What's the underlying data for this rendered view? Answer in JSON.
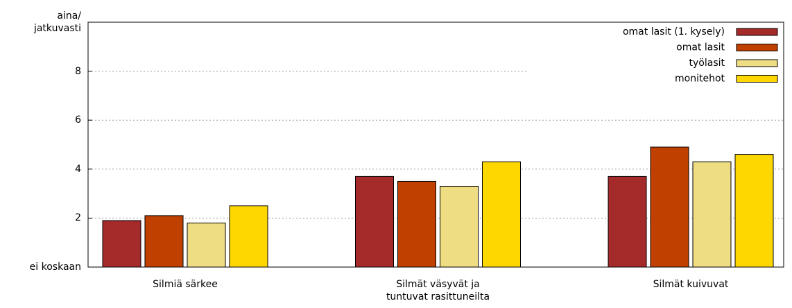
{
  "chart_data": {
    "type": "bar",
    "categories": [
      "Silmiä särkee",
      "Silmät väsyvät ja\ntuntuvat rasittuneilta",
      "Silmät kuivuvat"
    ],
    "series": [
      {
        "name": "omat lasit (1. kysely)",
        "color": "#a52a2a",
        "values": [
          1.9,
          3.7,
          3.7
        ]
      },
      {
        "name": "omat lasit",
        "color": "#c04000",
        "values": [
          2.1,
          3.5,
          4.9
        ]
      },
      {
        "name": "työlasit",
        "color": "#eedd82",
        "values": [
          1.8,
          3.3,
          4.3
        ]
      },
      {
        "name": "monitehot",
        "color": "#ffd700",
        "values": [
          2.5,
          4.3,
          4.6
        ]
      }
    ],
    "ylim": [
      0,
      10
    ],
    "yticks": [
      {
        "value": 0,
        "label": "ei koskaan"
      },
      2,
      4,
      6,
      8,
      {
        "value": 10,
        "label": "aina/\njatkuvasti"
      }
    ],
    "grid": true,
    "legend": "top-right"
  }
}
